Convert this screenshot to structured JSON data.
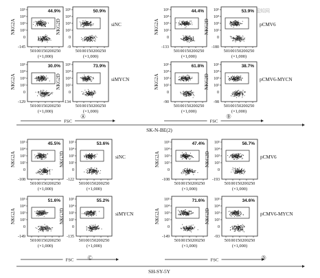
{
  "watermark": "中国知网",
  "ytick_labels": [
    "10⁵",
    "10⁴",
    "10³",
    "10²",
    "0"
  ],
  "xtick_label": "50100150200250",
  "x_multiplier": "(×1,000)",
  "fsc_label": "FSC",
  "blocks": [
    {
      "id": "A",
      "circle": "Ⓐ",
      "cell_line": "",
      "y_labels": [
        "NKG2A",
        "NKG2D"
      ],
      "rows": [
        {
          "label": "siNC",
          "ybottom": [
            "-145",
            "-9"
          ],
          "pcts": [
            "44.9%",
            "50.9%"
          ]
        },
        {
          "label": "siMYCN",
          "ybottom": [
            "-129",
            "-134"
          ],
          "pcts": [
            "30.0%",
            "73.9%"
          ]
        }
      ]
    },
    {
      "id": "B",
      "circle": "Ⓑ",
      "cell_line": "SK-N-BE(2)",
      "y_labels": [
        "NKG2A",
        "NKG2D"
      ],
      "rows": [
        {
          "label": "pCMV6",
          "ybottom": [
            "-133",
            "-180"
          ],
          "pcts": [
            "44.4%",
            "53.9%"
          ]
        },
        {
          "label": "pCMV6-MYCN",
          "ybottom": [
            "-90",
            "-98"
          ],
          "pcts": [
            "61.8%",
            "38.7%"
          ]
        }
      ]
    },
    {
      "id": "C",
      "circle": "Ⓒ",
      "cell_line": "",
      "y_labels": [
        "NKG2A",
        "NKG2D"
      ],
      "rows": [
        {
          "label": "siNC",
          "ybottom": [
            "-108",
            "-122"
          ],
          "pcts": [
            "45.5%",
            "53.6%"
          ]
        },
        {
          "label": "siMYCN",
          "ybottom": [
            "-149",
            "-135"
          ],
          "pcts": [
            "51.6%",
            "55.2%"
          ]
        }
      ]
    },
    {
      "id": "D",
      "circle": "Ⓓ",
      "cell_line": "SH-SY-5Y",
      "y_labels": [
        "NKG2A",
        "NKG2D"
      ],
      "rows": [
        {
          "label": "pCMV6",
          "ybottom": [
            "-108",
            "-193"
          ],
          "pcts": [
            "47.4%",
            "56.7%"
          ]
        },
        {
          "label": "pCMV6-MYCN",
          "ybottom": [
            "-149",
            "-93"
          ],
          "pcts": [
            "71.6%",
            "34.6%"
          ]
        }
      ]
    }
  ]
}
